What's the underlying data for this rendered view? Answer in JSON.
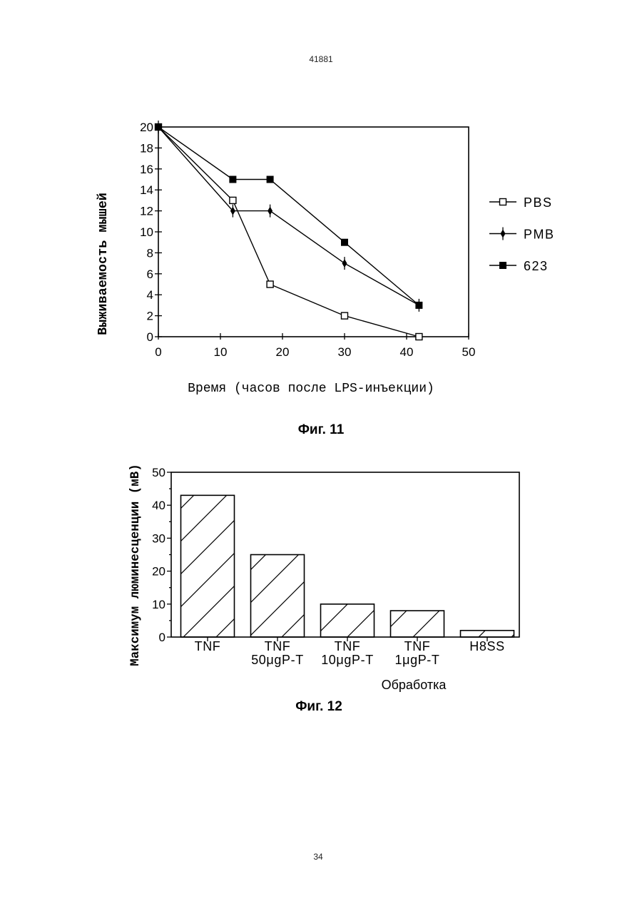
{
  "page": {
    "header_number": "41881",
    "footer_page": "34"
  },
  "colors": {
    "ink": "#000000",
    "paper": "#ffffff"
  },
  "chart_data": [
    {
      "type": "line",
      "caption": "Фиг. 11",
      "xlabel": "Время (часов после LPS-инъекции)",
      "ylabel": "Выживаемость мышей",
      "xlim": [
        0,
        50
      ],
      "ylim": [
        0,
        20
      ],
      "xticks": [
        0,
        10,
        20,
        30,
        40,
        50
      ],
      "yticks": [
        0,
        2,
        4,
        6,
        8,
        10,
        12,
        14,
        16,
        18,
        20
      ],
      "grid": false,
      "legend": "right",
      "series": [
        {
          "name": "PBS",
          "marker": "open-square",
          "x": [
            0,
            12,
            18,
            30,
            42
          ],
          "y": [
            20,
            13,
            5,
            2,
            0
          ]
        },
        {
          "name": "PMB",
          "marker": "diamond-cross",
          "x": [
            0,
            12,
            18,
            30,
            42
          ],
          "y": [
            20,
            12,
            12,
            7,
            3
          ]
        },
        {
          "name": "623",
          "marker": "filled-square",
          "x": [
            0,
            12,
            18,
            30,
            42
          ],
          "y": [
            20,
            15,
            15,
            9,
            3
          ]
        }
      ]
    },
    {
      "type": "bar",
      "caption": "Фиг. 12",
      "xlabel": "Обработка",
      "ylabel": "Максимум люминесценции (мВ)",
      "ylim": [
        0,
        50
      ],
      "yticks": [
        0,
        10,
        20,
        30,
        40,
        50
      ],
      "grid": false,
      "legend": "none",
      "bar_fill": "diagonal-hatch",
      "categories": [
        "TNF",
        "TNF\n50μgP-T",
        "TNF\n10μgP-T",
        "TNF\n1μgP-T",
        "H8SS"
      ],
      "values": [
        43,
        25,
        10,
        8,
        2
      ]
    }
  ]
}
